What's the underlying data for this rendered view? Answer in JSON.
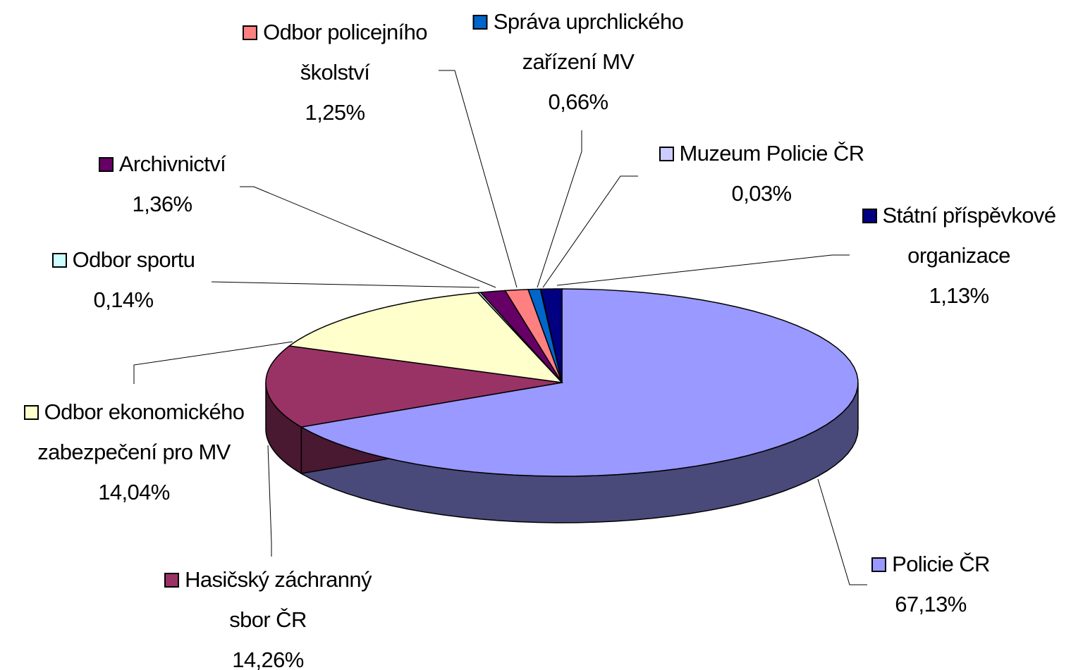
{
  "chart_data": {
    "type": "pie",
    "categories": [
      "Policie ČR",
      "Hasičský záchranný sbor ČR",
      "Odbor ekonomického zabezpečení pro MV",
      "Odbor sportu",
      "Archivnictví",
      "Odbor policejního školství",
      "Správa uprchlického zařízení MV",
      "Muzeum Policie ČR",
      "Státní příspěvkové organizace"
    ],
    "values": [
      67.13,
      14.26,
      14.04,
      0.14,
      1.36,
      1.25,
      0.66,
      0.03,
      1.13
    ],
    "value_labels": [
      "67,13%",
      "14,26%",
      "14,04%",
      "0,14%",
      "1,36%",
      "1,25%",
      "0,66%",
      "0,03%",
      "1,13%"
    ],
    "colors": [
      "#9999ff",
      "#993366",
      "#ffffcc",
      "#ccffff",
      "#660066",
      "#ff8080",
      "#0066cc",
      "#ccccff",
      "#000080"
    ]
  }
}
